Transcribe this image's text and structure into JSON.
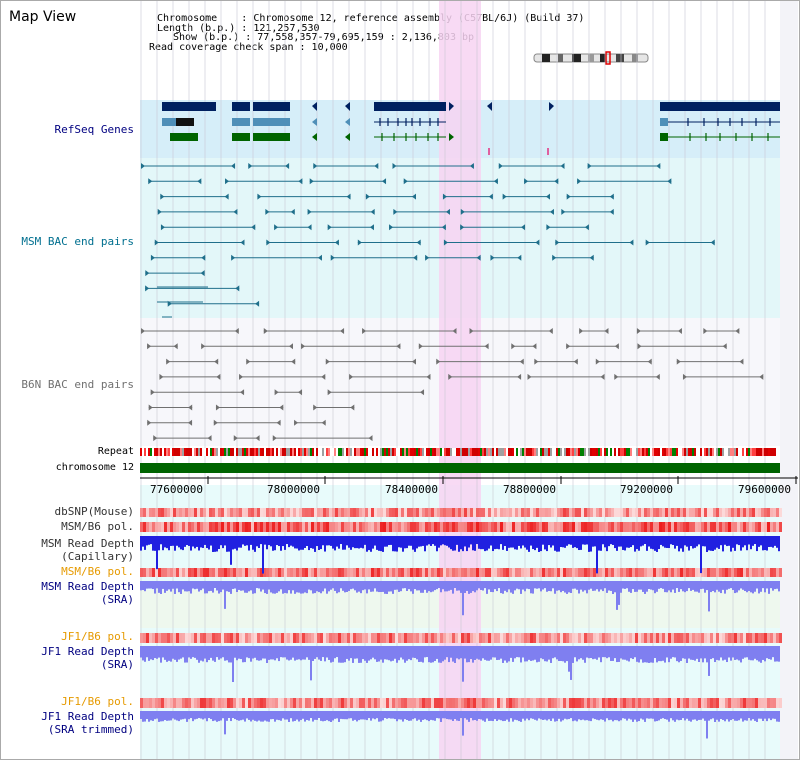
{
  "header": {
    "title": "Map View",
    "info_lines": [
      "Chromosome    : Chromosome 12, reference assembly (C57BL/6J) (Build 37)",
      "Length (b.p.) : 121,257,530",
      "Show (b.p.) : 77,558,357-79,695,159 : 2,136,803 bp",
      "Read coverage check span : 10,000"
    ]
  },
  "tracks": {
    "refseq": "RefSeq Genes",
    "msm_bac": "MSM BAC end pairs",
    "b6n_bac": "B6N BAC end pairs",
    "repeat": "Repeat",
    "chromosome": "chromosome 12",
    "dbsnp": "dbSNP(Mouse)",
    "msm_b6_pol_1": "MSM/B6 pol.",
    "msm_depth_cap_1": "MSM Read Depth",
    "msm_depth_cap_2": "(Capillary)",
    "msm_b6_pol_2": "MSM/B6 pol.",
    "msm_depth_sra_1": "MSM Read Depth",
    "msm_depth_sra_2": "(SRA)",
    "jf1_b6_pol_1": "JF1/B6 pol.",
    "jf1_depth_sra_1": "JF1 Read Depth",
    "jf1_depth_sra_2": "(SRA)",
    "jf1_b6_pol_2": "JF1/B6 pol.",
    "jf1_depth_trim_1": "JF1 Read Depth",
    "jf1_depth_trim_2": "(SRA trimmed)"
  },
  "axis": {
    "ticks": [
      "77600000",
      "78000000",
      "78400000",
      "78800000",
      "79200000",
      "79600000"
    ]
  },
  "colors": {
    "highlight": "#f7d4f2",
    "refseq_bg": "#d6eef9",
    "msm_bg": "#e3f7f9",
    "lower_bg": "#e8fbfb",
    "gene_dark": "#002060",
    "gene_mid": "#4f8fb8",
    "gene_green": "#006400",
    "chromosome_green": "#006400",
    "msm_pair": "#1f6f8b",
    "b6n_pair": "#707070",
    "depth_blue": "#2020e0",
    "depth_light": "#7f7ff0",
    "label_navy": "#000080",
    "label_orange": "#e69a00",
    "label_teal": "#006f8f"
  }
}
